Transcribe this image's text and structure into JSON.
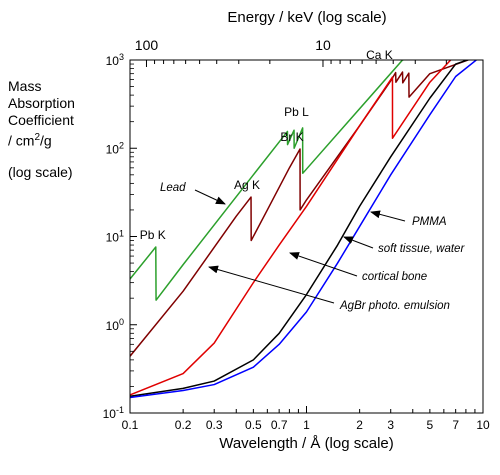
{
  "chart_data": {
    "type": "line",
    "title": "",
    "xlabel": "Wavelength / Å  (log scale)",
    "x2label": "Energy / keV  (log scale)",
    "ylabel_lines": [
      "Mass",
      "Absorption",
      "Coefficient"
    ],
    "ylabel_unit_prefix": "/ cm",
    "ylabel_unit_sup": "2",
    "ylabel_unit_suffix": "/g",
    "ylabel_scale": "(log scale)",
    "x_scale": "log",
    "y_scale": "log",
    "xlim": [
      0.1,
      10
    ],
    "ylim": [
      0.1,
      1000
    ],
    "x_ticks": [
      0.1,
      0.2,
      0.3,
      0.5,
      0.7,
      1,
      2,
      3,
      5,
      7,
      10
    ],
    "x_tick_labels": [
      "0.1",
      "0.2",
      "0.3",
      "0.5",
      "0.7",
      "1",
      "2",
      "3",
      "5",
      "7",
      "10"
    ],
    "y_ticks": [
      0.1,
      1,
      10,
      100,
      1000
    ],
    "y_tick_base": "10",
    "y_tick_exponents": [
      "-1",
      "0",
      "1",
      "2",
      "3"
    ],
    "energy_ticks": [
      100,
      10
    ],
    "energy_tick_labels": [
      "100",
      "10"
    ],
    "grid": false,
    "series": [
      {
        "name": "Lead",
        "color": "#2ca02c",
        "x": [
          0.1,
          0.14,
          0.1405,
          0.2,
          0.5,
          0.78,
          0.781,
          0.85,
          0.851,
          0.951,
          0.952,
          3.5,
          5.1,
          10
        ],
        "y": [
          3.3,
          7.6,
          1.9,
          4.8,
          50,
          155,
          110,
          160,
          100,
          170,
          52,
          1000,
          1150,
          1150
        ]
      },
      {
        "name": "AgBr photo. emulsion",
        "color": "#800000",
        "x": [
          0.1,
          0.2,
          0.4,
          0.485,
          0.486,
          0.6,
          0.8,
          0.919,
          0.92,
          1,
          2,
          3,
          3.2,
          3.21,
          3.5,
          3.51,
          3.8,
          3.81,
          5,
          10
        ],
        "y": [
          0.44,
          2.4,
          17,
          28,
          9,
          20,
          60,
          98,
          20,
          26,
          180,
          580,
          720,
          560,
          730,
          550,
          710,
          380,
          700,
          1150
        ]
      },
      {
        "name": "cortical bone",
        "color": "#e00000",
        "x": [
          0.1,
          0.2,
          0.3,
          0.5,
          0.7,
          1,
          2,
          3.07,
          3.071,
          5,
          7,
          10
        ],
        "y": [
          0.16,
          0.28,
          0.62,
          3,
          8,
          22,
          180,
          640,
          130,
          560,
          1150,
          1150
        ]
      },
      {
        "name": "PMMA",
        "color": "#000000",
        "x": [
          0.1,
          0.2,
          0.3,
          0.5,
          0.7,
          1,
          1.5,
          2,
          3,
          5,
          7,
          10
        ],
        "y": [
          0.155,
          0.19,
          0.23,
          0.4,
          0.8,
          2.2,
          8,
          22,
          80,
          370,
          900,
          1150
        ]
      },
      {
        "name": "soft tissue, water",
        "color": "#0000ff",
        "x": [
          0.1,
          0.2,
          0.3,
          0.5,
          0.7,
          1,
          1.5,
          2,
          3,
          5,
          7,
          10
        ],
        "y": [
          0.15,
          0.18,
          0.21,
          0.33,
          0.6,
          1.4,
          5,
          13,
          50,
          240,
          650,
          1150
        ]
      }
    ],
    "edge_labels": [
      {
        "text": "Pb K",
        "x": 0.14,
        "y": 7.6
      },
      {
        "text": "Ag K",
        "x": 0.485,
        "y": 28
      },
      {
        "text": "Br K",
        "x": 0.919,
        "y": 98
      },
      {
        "text": "Pb L",
        "x": 0.9,
        "y": 170
      },
      {
        "text": "Ca K",
        "x": 3.07,
        "y": 640
      }
    ],
    "annotations": [
      {
        "text": "Lead",
        "style": "italic",
        "arrow_to": "Lead"
      },
      {
        "text": "PMMA",
        "style": "italic",
        "arrow_to": "PMMA"
      },
      {
        "text": "soft tissue, water",
        "style": "italic",
        "arrow_to": "soft tissue, water"
      },
      {
        "text": "cortical bone",
        "style": "italic",
        "arrow_to": "cortical bone"
      },
      {
        "text": "AgBr photo. emulsion",
        "style": "italic",
        "arrow_to": "AgBr photo. emulsion"
      }
    ]
  }
}
